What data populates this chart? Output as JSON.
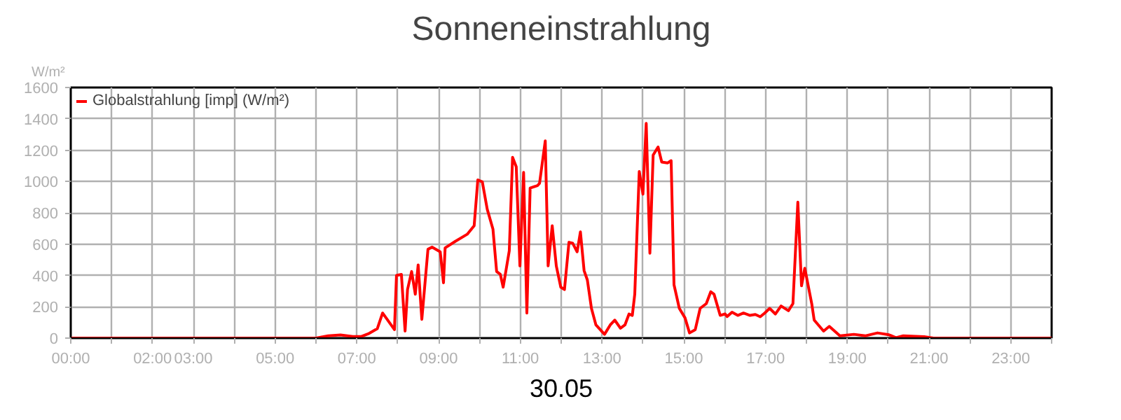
{
  "chart_data": {
    "type": "line",
    "title": "Sonneneinstrahlung",
    "xlabel": "30.05",
    "ylabel": "W/m²",
    "xlim": [
      0,
      24
    ],
    "ylim": [
      0,
      1600
    ],
    "xticks": [
      {
        "value": 0,
        "label": "00:00"
      },
      {
        "value": 1,
        "label": null
      },
      {
        "value": 2,
        "label": "02:00"
      },
      {
        "value": 3,
        "label": "03:00"
      },
      {
        "value": 4,
        "label": null
      },
      {
        "value": 5,
        "label": "05:00"
      },
      {
        "value": 6,
        "label": null
      },
      {
        "value": 7,
        "label": "07:00"
      },
      {
        "value": 8,
        "label": null
      },
      {
        "value": 9,
        "label": "09:00"
      },
      {
        "value": 10,
        "label": null
      },
      {
        "value": 11,
        "label": "11:00"
      },
      {
        "value": 12,
        "label": null
      },
      {
        "value": 13,
        "label": "13:00"
      },
      {
        "value": 14,
        "label": null
      },
      {
        "value": 15,
        "label": "15:00"
      },
      {
        "value": 16,
        "label": null
      },
      {
        "value": 17,
        "label": "17:00"
      },
      {
        "value": 18,
        "label": null
      },
      {
        "value": 19,
        "label": "19:00"
      },
      {
        "value": 20,
        "label": null
      },
      {
        "value": 21,
        "label": "21:00"
      },
      {
        "value": 22,
        "label": null
      },
      {
        "value": 23,
        "label": "23:00"
      },
      {
        "value": 24,
        "label": null
      }
    ],
    "yticks": [
      0,
      200,
      400,
      600,
      800,
      1000,
      1200,
      1400,
      1600
    ],
    "grid": true,
    "legend": "top left",
    "marker": "none",
    "line_style": "solid",
    "series": [
      {
        "name": "Globalstrahlung [imp] (W/m²)",
        "color": "#ff0000",
        "x": [
          0,
          6.0,
          6.3,
          6.6,
          6.9,
          7.1,
          7.3,
          7.5,
          7.63,
          7.92,
          7.97,
          8.09,
          8.18,
          8.24,
          8.34,
          8.43,
          8.5,
          8.59,
          8.74,
          8.84,
          9.04,
          9.12,
          9.16,
          9.41,
          9.7,
          9.87,
          9.96,
          10.07,
          10.19,
          10.33,
          10.42,
          10.51,
          10.58,
          10.73,
          10.81,
          10.9,
          10.99,
          11.08,
          11.16,
          11.24,
          11.42,
          11.47,
          11.61,
          11.68,
          11.78,
          11.88,
          11.99,
          12.08,
          12.19,
          12.28,
          12.39,
          12.47,
          12.56,
          12.64,
          12.74,
          12.85,
          13.06,
          13.2,
          13.31,
          13.45,
          13.56,
          13.66,
          13.74,
          13.8,
          13.91,
          14.0,
          14.08,
          14.17,
          14.25,
          14.37,
          14.46,
          14.6,
          14.69,
          14.76,
          14.89,
          15.03,
          15.14,
          15.28,
          15.4,
          15.55,
          15.66,
          15.74,
          15.89,
          16.01,
          16.06,
          16.18,
          16.32,
          16.46,
          16.62,
          16.75,
          16.87,
          16.98,
          17.1,
          17.24,
          17.38,
          17.56,
          17.67,
          17.79,
          17.88,
          17.96,
          18.13,
          18.19,
          18.42,
          18.56,
          18.82,
          19.16,
          19.45,
          19.74,
          20.02,
          20.19,
          20.37,
          20.88,
          21.11,
          24
        ],
        "values": [
          0,
          0,
          15,
          20,
          10,
          10,
          30,
          60,
          160,
          54,
          400,
          407,
          45,
          310,
          425,
          280,
          467,
          120,
          567,
          581,
          551,
          353,
          576,
          618,
          663,
          717,
          1010,
          997,
          823,
          696,
          425,
          407,
          325,
          558,
          1154,
          1094,
          461,
          1058,
          160,
          958,
          974,
          988,
          1259,
          461,
          717,
          461,
          325,
          310,
          612,
          606,
          551,
          678,
          431,
          371,
          190,
          84,
          24,
          84,
          115,
          63,
          84,
          154,
          145,
          280,
          1064,
          919,
          1371,
          542,
          1169,
          1220,
          1124,
          1118,
          1133,
          341,
          190,
          129,
          33,
          54,
          190,
          220,
          296,
          280,
          145,
          154,
          138,
          165,
          145,
          160,
          145,
          151,
          136,
          160,
          190,
          154,
          205,
          175,
          220,
          868,
          334,
          446,
          220,
          115,
          45,
          75,
          15,
          24,
          15,
          33,
          21,
          3,
          15,
          9,
          0,
          0
        ]
      }
    ]
  }
}
